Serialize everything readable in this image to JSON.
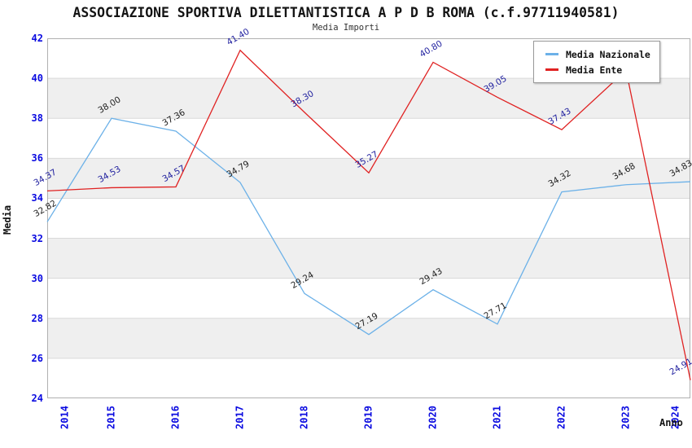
{
  "chart_data": {
    "type": "line",
    "title": "ASSOCIAZIONE SPORTIVA DILETTANTISTICA A P D B ROMA (c.f.97711940581)",
    "subtitle": "Media Importi",
    "xlabel": "Anno",
    "ylabel": "Media",
    "categories": [
      "2014",
      "2015",
      "2016",
      "2017",
      "2018",
      "2019",
      "2020",
      "2021",
      "2022",
      "2023",
      "2024"
    ],
    "ylim": [
      24,
      42
    ],
    "ytick_step": 2,
    "yticks": [
      24,
      26,
      28,
      30,
      32,
      34,
      36,
      38,
      40,
      42
    ],
    "grid": "horizontal",
    "band_fill": "alternating-horizontal",
    "legend_position": "top-right",
    "series": [
      {
        "name": "Media Nazionale",
        "color": "#6cb1e8",
        "label_color": "#1e1e1e",
        "values": [
          32.82,
          38.0,
          37.36,
          34.79,
          29.24,
          27.19,
          29.43,
          27.71,
          34.32,
          34.68,
          34.83
        ],
        "labels": [
          "32.82",
          "38.00",
          "37.36",
          "34.79",
          "29.24",
          "27.19",
          "29.43",
          "27.71",
          "34.32",
          "34.68",
          "34.83"
        ]
      },
      {
        "name": "Media Ente",
        "color": "#e02222",
        "label_color": "#1e1e9e",
        "values": [
          34.37,
          34.53,
          34.57,
          41.4,
          38.3,
          35.27,
          40.8,
          39.05,
          37.43,
          40.4,
          24.91
        ],
        "labels": [
          "34.37",
          "34.53",
          "34.57",
          "41.40",
          "38.30",
          "35.27",
          "40.80",
          "39.05",
          "37.43",
          null,
          "24.91"
        ]
      }
    ],
    "colors": {
      "axis_tick": "#0a0ae0",
      "gridline": "#d9d9d9",
      "band": "#efefef",
      "plot_border": "#b0b0b0",
      "title_text": "#141414"
    }
  }
}
